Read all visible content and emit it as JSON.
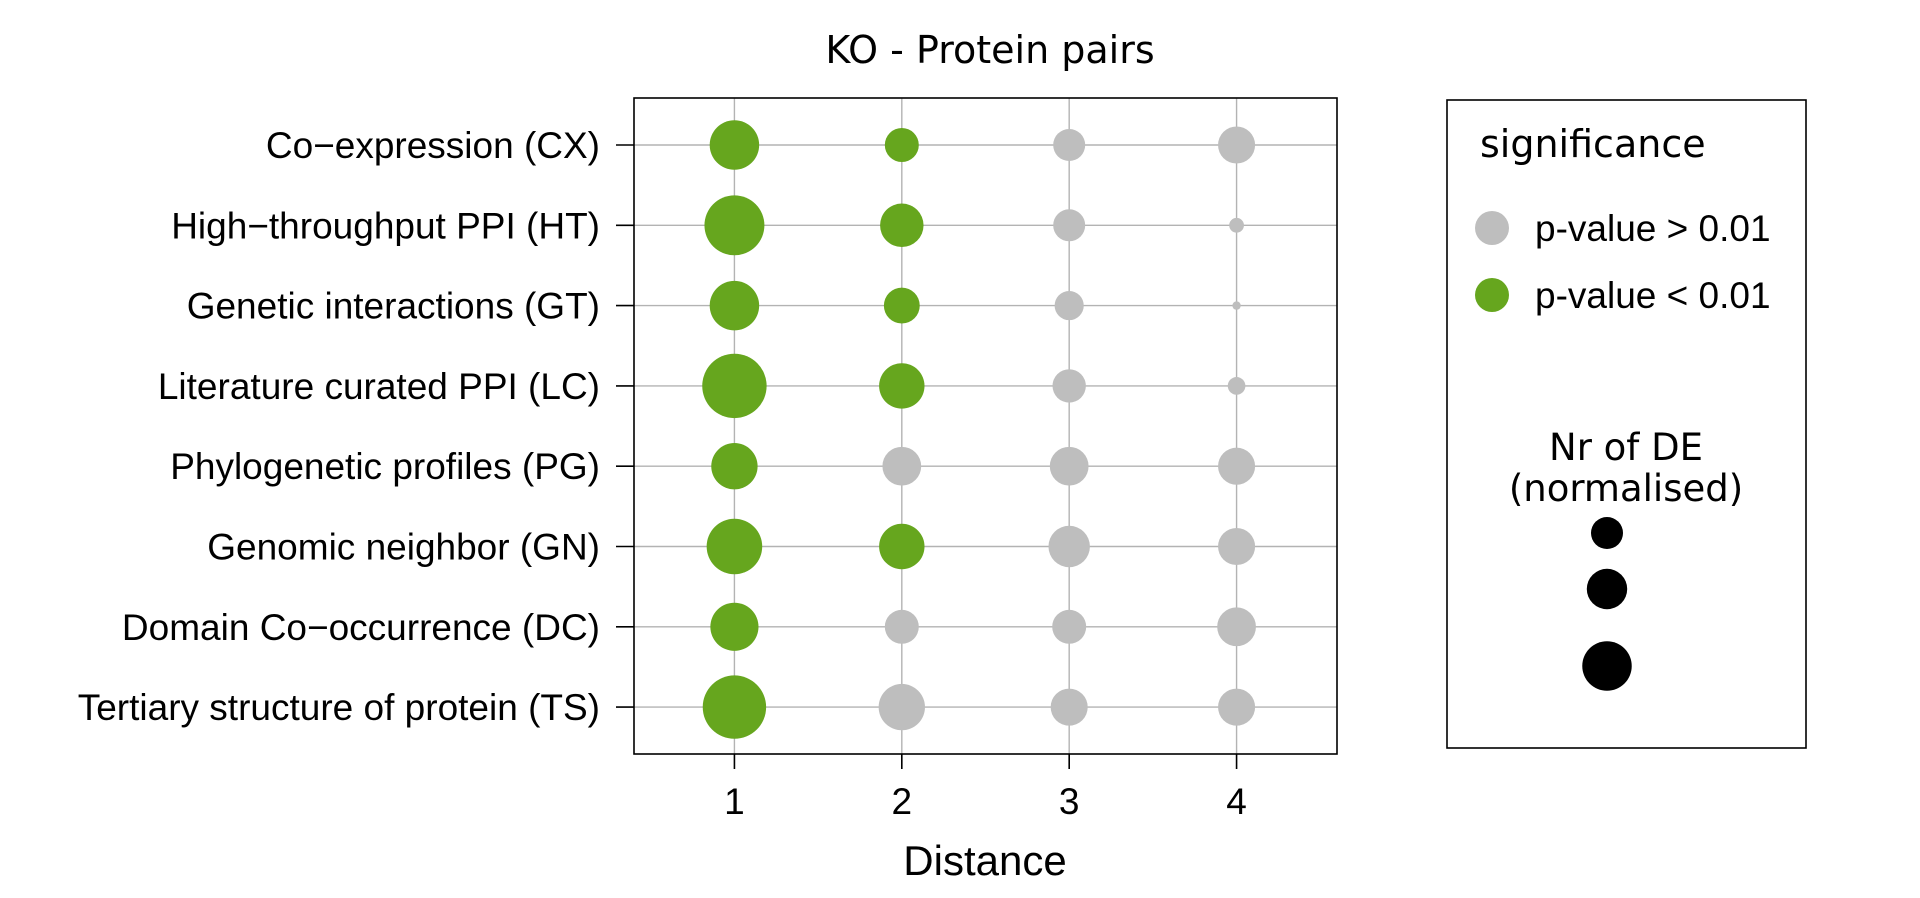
{
  "chart_data": {
    "type": "scatter",
    "title": "KO - Protein pairs",
    "xlabel": "Distance",
    "ylabel": "",
    "x_ticks": [
      "1",
      "2",
      "3",
      "4"
    ],
    "x_range": [
      0.4,
      4.6
    ],
    "categories": [
      "Co−expression (CX)",
      "High−throughput PPI (HT)",
      "Genetic interactions (GT)",
      "Literature curated PPI (LC)",
      "Phylogenetic profiles (PG)",
      "Genomic neighbor (GN)",
      "Domain Co−occurrence (DC)",
      "Tertiary structure of protein (TS)"
    ],
    "grid": true,
    "colors": {
      "significant": "#66a61e",
      "not_significant": "#bebebe",
      "axis": "#000000",
      "grid": "#b3b3b3"
    },
    "points": [
      {
        "y": "Co−expression (CX)",
        "x": 1,
        "size": 0.55,
        "significant": true
      },
      {
        "y": "Co−expression (CX)",
        "x": 2,
        "size": 0.25,
        "significant": true
      },
      {
        "y": "Co−expression (CX)",
        "x": 3,
        "size": 0.22,
        "significant": false
      },
      {
        "y": "Co−expression (CX)",
        "x": 4,
        "size": 0.3,
        "significant": false
      },
      {
        "y": "High−throughput PPI (HT)",
        "x": 1,
        "size": 0.82,
        "significant": true
      },
      {
        "y": "High−throughput PPI (HT)",
        "x": 2,
        "size": 0.42,
        "significant": true
      },
      {
        "y": "High−throughput PPI (HT)",
        "x": 3,
        "size": 0.22,
        "significant": false
      },
      {
        "y": "High−throughput PPI (HT)",
        "x": 4,
        "size": 0.04,
        "significant": false
      },
      {
        "y": "Genetic interactions (GT)",
        "x": 1,
        "size": 0.55,
        "significant": true
      },
      {
        "y": "Genetic interactions (GT)",
        "x": 2,
        "size": 0.28,
        "significant": true
      },
      {
        "y": "Genetic interactions (GT)",
        "x": 3,
        "size": 0.18,
        "significant": false
      },
      {
        "y": "Genetic interactions (GT)",
        "x": 4,
        "size": 0.01,
        "significant": false
      },
      {
        "y": "Literature curated PPI (LC)",
        "x": 1,
        "size": 0.95,
        "significant": true
      },
      {
        "y": "Literature curated PPI (LC)",
        "x": 2,
        "size": 0.46,
        "significant": true
      },
      {
        "y": "Literature curated PPI (LC)",
        "x": 3,
        "size": 0.24,
        "significant": false
      },
      {
        "y": "Literature curated PPI (LC)",
        "x": 4,
        "size": 0.06,
        "significant": false
      },
      {
        "y": "Phylogenetic profiles (PG)",
        "x": 1,
        "size": 0.48,
        "significant": true
      },
      {
        "y": "Phylogenetic profiles (PG)",
        "x": 2,
        "size": 0.33,
        "significant": false
      },
      {
        "y": "Phylogenetic profiles (PG)",
        "x": 3,
        "size": 0.33,
        "significant": false
      },
      {
        "y": "Phylogenetic profiles (PG)",
        "x": 4,
        "size": 0.3,
        "significant": false
      },
      {
        "y": "Genomic neighbor (GN)",
        "x": 1,
        "size": 0.7,
        "significant": true
      },
      {
        "y": "Genomic neighbor (GN)",
        "x": 2,
        "size": 0.46,
        "significant": true
      },
      {
        "y": "Genomic neighbor (GN)",
        "x": 3,
        "size": 0.38,
        "significant": false
      },
      {
        "y": "Genomic neighbor (GN)",
        "x": 4,
        "size": 0.3,
        "significant": false
      },
      {
        "y": "Domain Co−occurrence (DC)",
        "x": 1,
        "size": 0.52,
        "significant": true
      },
      {
        "y": "Domain Co−occurrence (DC)",
        "x": 2,
        "size": 0.25,
        "significant": false
      },
      {
        "y": "Domain Co−occurrence (DC)",
        "x": 3,
        "size": 0.25,
        "significant": false
      },
      {
        "y": "Domain Co−occurrence (DC)",
        "x": 4,
        "size": 0.33,
        "significant": false
      },
      {
        "y": "Tertiary structure of protein (TS)",
        "x": 1,
        "size": 0.92,
        "significant": true
      },
      {
        "y": "Tertiary structure of protein (TS)",
        "x": 2,
        "size": 0.48,
        "significant": false
      },
      {
        "y": "Tertiary structure of protein (TS)",
        "x": 3,
        "size": 0.3,
        "significant": false
      },
      {
        "y": "Tertiary structure of protein (TS)",
        "x": 4,
        "size": 0.3,
        "significant": false
      }
    ],
    "legend": {
      "placement": "right",
      "significance_title": "significance",
      "significance_items": [
        {
          "label": "p-value > 0.01",
          "significant": false
        },
        {
          "label": "p-value < 0.01",
          "significant": true
        }
      ],
      "size_title_line1": "Nr of DE",
      "size_title_line2": "(normalised)",
      "size_items": [
        0.22,
        0.36,
        0.55
      ]
    }
  }
}
